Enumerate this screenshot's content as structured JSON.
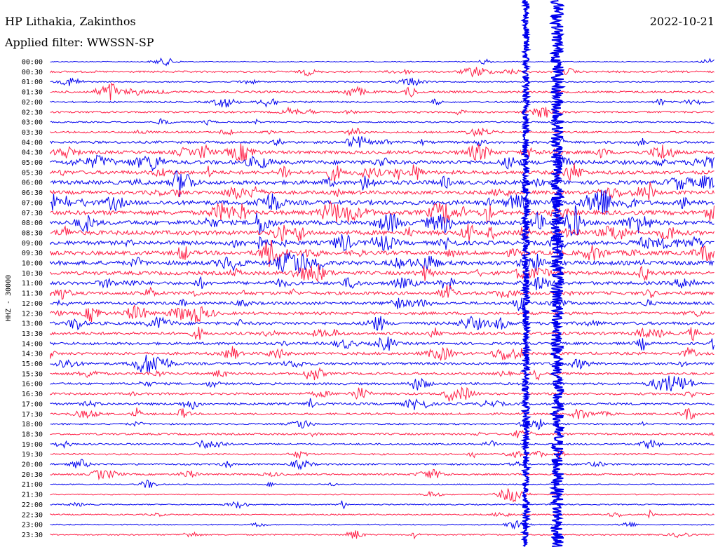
{
  "header": {
    "station": "HP Lithakia, Zakinthos",
    "filter": "Applied filter: WWSSN-SP",
    "date": "2022-10-21"
  },
  "chart_data": {
    "type": "line",
    "title": "HP Lithakia, Zakinthos",
    "subtitle": "Applied filter: WWSSN-SP",
    "date": "2022-10-21",
    "ylabel": "HHZ - 30000",
    "row_labels": [
      "00:00",
      "00:30",
      "01:00",
      "01:30",
      "02:00",
      "02:30",
      "03:00",
      "03:30",
      "04:00",
      "04:30",
      "05:00",
      "05:30",
      "06:00",
      "06:30",
      "07:00",
      "07:30",
      "08:00",
      "08:30",
      "09:00",
      "09:30",
      "10:00",
      "10:30",
      "11:00",
      "11:30",
      "12:00",
      "12:30",
      "13:00",
      "13:30",
      "14:00",
      "14:30",
      "15:00",
      "15:30",
      "16:00",
      "16:30",
      "17:00",
      "17:30",
      "18:00",
      "18:30",
      "19:00",
      "19:30",
      "20:00",
      "20:30",
      "21:00",
      "21:30",
      "22:00",
      "22:30",
      "23:00",
      "23:30"
    ],
    "row_activity": [
      0.1,
      0.35,
      0.15,
      0.4,
      0.3,
      0.35,
      0.2,
      0.35,
      0.5,
      0.7,
      0.9,
      0.8,
      0.9,
      0.8,
      1.0,
      1.0,
      1.0,
      1.0,
      0.9,
      0.9,
      0.95,
      0.8,
      0.7,
      0.7,
      0.6,
      0.6,
      0.65,
      0.6,
      0.55,
      0.55,
      0.5,
      0.5,
      0.45,
      0.45,
      0.45,
      0.4,
      0.3,
      0.35,
      0.3,
      0.3,
      0.3,
      0.3,
      0.15,
      0.15,
      0.15,
      0.2,
      0.15,
      0.2
    ],
    "series_colors": [
      "#0000ee",
      "#ff1e46"
    ],
    "event_minutes": [
      21.5,
      23.5
    ]
  }
}
